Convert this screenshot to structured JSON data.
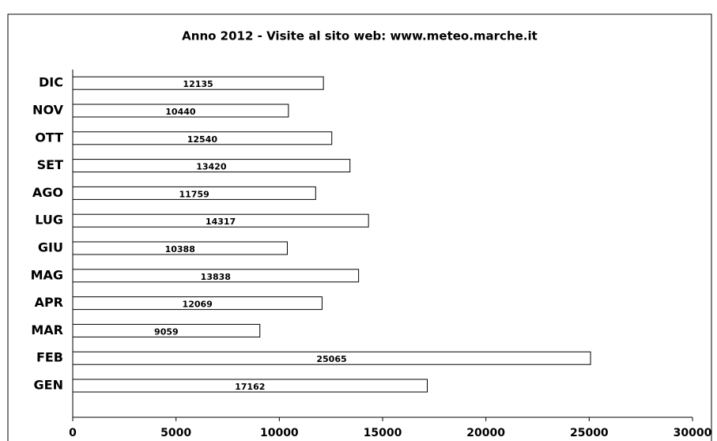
{
  "chart_data": {
    "type": "bar",
    "orientation": "horizontal",
    "title": "Anno 2012 - Visite al sito web: www.meteo.marche.it",
    "categories": [
      "GEN",
      "FEB",
      "MAR",
      "APR",
      "MAG",
      "GIU",
      "LUG",
      "AGO",
      "SET",
      "OTT",
      "NOV",
      "DIC"
    ],
    "values": [
      17162,
      25065,
      9059,
      12069,
      13838,
      10388,
      14317,
      11759,
      13420,
      12540,
      10440,
      12135
    ],
    "color": "#ffffff",
    "xlim": [
      0,
      30000
    ],
    "xticks": [
      0,
      5000,
      10000,
      15000,
      20000,
      25000,
      30000
    ]
  }
}
